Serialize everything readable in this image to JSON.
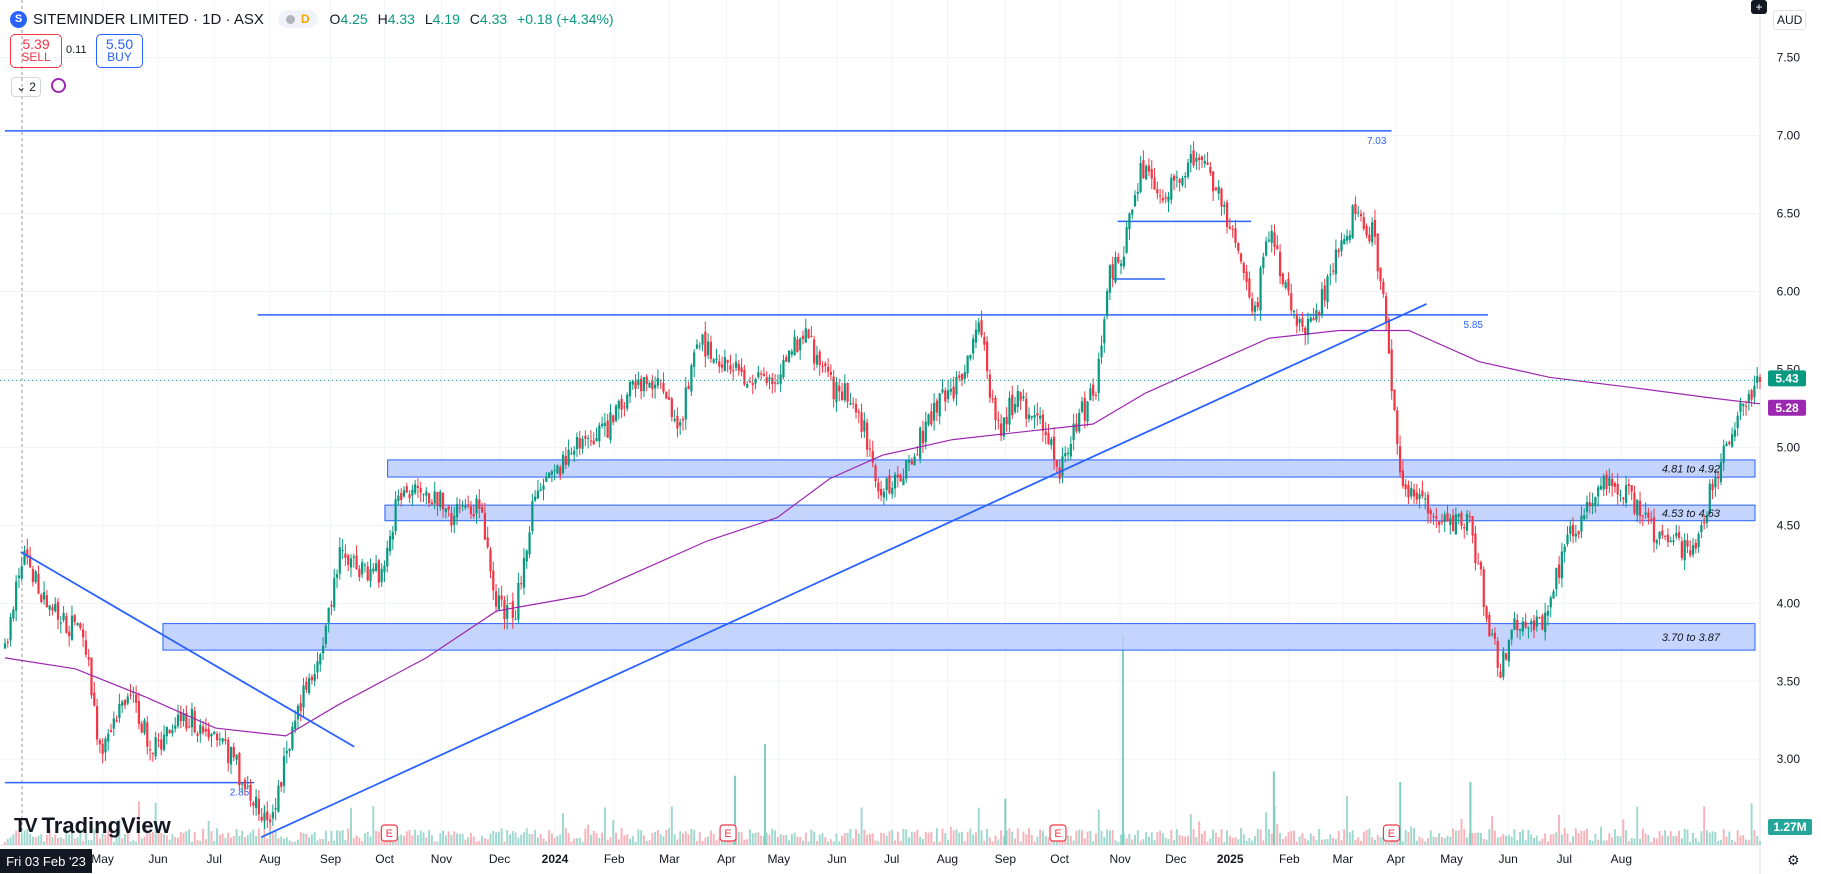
{
  "header": {
    "logo_letter": "S",
    "title": "SITEMINDER LIMITED · 1D · ASX",
    "session_badge": "D",
    "ohlc": [
      {
        "k": "O",
        "v": "4.25"
      },
      {
        "k": "H",
        "v": "4.33"
      },
      {
        "k": "L",
        "v": "4.19"
      },
      {
        "k": "C",
        "v": "4.33"
      },
      {
        "k": "",
        "v": "+0.18 (+4.34%)"
      }
    ]
  },
  "trade": {
    "sell_price": "5.39",
    "sell_label": "SELL",
    "spread": "0.11",
    "buy_price": "5.50",
    "buy_label": "BUY"
  },
  "indicators": {
    "count": "2"
  },
  "currency": "AUD",
  "branding": {
    "name": "TradingView"
  },
  "crosshair_date": "Fri 03 Feb '23",
  "colors": {
    "up": "#089981",
    "down": "#f23645",
    "drawing": "#2962ff",
    "ma": "#9c27b0",
    "zone_fill": "#bbcdfb"
  },
  "chart_data": {
    "type": "candlestick",
    "y_axis": {
      "range": [
        2.45,
        7.78
      ],
      "ticks": [
        "3.00",
        "3.50",
        "4.00",
        "4.50",
        "5.00",
        "5.50",
        "6.00",
        "6.50",
        "7.00",
        "7.50"
      ]
    },
    "x_axis": {
      "ticks": [
        {
          "label": "May",
          "t": 0.0556
        },
        {
          "label": "Jun",
          "t": 0.0872
        },
        {
          "label": "Jul",
          "t": 0.1192
        },
        {
          "label": "Aug",
          "t": 0.151
        },
        {
          "label": "Sep",
          "t": 0.1855
        },
        {
          "label": "Oct",
          "t": 0.2163
        },
        {
          "label": "Nov",
          "t": 0.2487
        },
        {
          "label": "Dec",
          "t": 0.2818
        },
        {
          "label": "2024",
          "t": 0.3134
        },
        {
          "label": "Feb",
          "t": 0.3471
        },
        {
          "label": "Mar",
          "t": 0.3786
        },
        {
          "label": "Apr",
          "t": 0.4111
        },
        {
          "label": "May",
          "t": 0.4409
        },
        {
          "label": "Jun",
          "t": 0.474
        },
        {
          "label": "Jul",
          "t": 0.5052
        },
        {
          "label": "Aug",
          "t": 0.537
        },
        {
          "label": "Sep",
          "t": 0.57
        },
        {
          "label": "Oct",
          "t": 0.6009
        },
        {
          "label": "Nov",
          "t": 0.6354
        },
        {
          "label": "Dec",
          "t": 0.6671
        },
        {
          "label": "2025",
          "t": 0.6981
        },
        {
          "label": "Feb",
          "t": 0.7318
        },
        {
          "label": "Mar",
          "t": 0.7623
        },
        {
          "label": "Apr",
          "t": 0.7926
        },
        {
          "label": "May",
          "t": 0.8243
        },
        {
          "label": "Jun",
          "t": 0.8565
        },
        {
          "label": "Jul",
          "t": 0.8885
        },
        {
          "label": "Aug",
          "t": 0.921
        }
      ]
    },
    "price_keypoints": [
      [
        0.0,
        3.7
      ],
      [
        0.01,
        4.3
      ],
      [
        0.03,
        3.9
      ],
      [
        0.045,
        3.8
      ],
      [
        0.055,
        3.0
      ],
      [
        0.07,
        3.45
      ],
      [
        0.085,
        3.05
      ],
      [
        0.1,
        3.3
      ],
      [
        0.125,
        3.1
      ],
      [
        0.15,
        2.55
      ],
      [
        0.16,
        3.0
      ],
      [
        0.17,
        3.45
      ],
      [
        0.18,
        3.6
      ],
      [
        0.19,
        4.3
      ],
      [
        0.2,
        4.25
      ],
      [
        0.215,
        4.2
      ],
      [
        0.223,
        4.65
      ],
      [
        0.235,
        4.8
      ],
      [
        0.255,
        4.55
      ],
      [
        0.27,
        4.65
      ],
      [
        0.28,
        4.0
      ],
      [
        0.29,
        3.9
      ],
      [
        0.3,
        4.6
      ],
      [
        0.315,
        4.85
      ],
      [
        0.33,
        5.05
      ],
      [
        0.345,
        5.15
      ],
      [
        0.36,
        5.45
      ],
      [
        0.375,
        5.35
      ],
      [
        0.385,
        5.15
      ],
      [
        0.395,
        5.7
      ],
      [
        0.41,
        5.55
      ],
      [
        0.425,
        5.4
      ],
      [
        0.44,
        5.45
      ],
      [
        0.455,
        5.75
      ],
      [
        0.47,
        5.4
      ],
      [
        0.485,
        5.3
      ],
      [
        0.5,
        4.7
      ],
      [
        0.515,
        4.9
      ],
      [
        0.53,
        5.25
      ],
      [
        0.545,
        5.45
      ],
      [
        0.555,
        5.8
      ],
      [
        0.565,
        5.1
      ],
      [
        0.575,
        5.3
      ],
      [
        0.59,
        5.2
      ],
      [
        0.6,
        4.85
      ],
      [
        0.613,
        5.2
      ],
      [
        0.622,
        5.4
      ],
      [
        0.628,
        6.05
      ],
      [
        0.638,
        6.3
      ],
      [
        0.648,
        6.8
      ],
      [
        0.66,
        6.6
      ],
      [
        0.675,
        6.85
      ],
      [
        0.69,
        6.7
      ],
      [
        0.7,
        6.35
      ],
      [
        0.712,
        5.85
      ],
      [
        0.72,
        6.4
      ],
      [
        0.732,
        5.9
      ],
      [
        0.745,
        5.75
      ],
      [
        0.758,
        6.2
      ],
      [
        0.77,
        6.55
      ],
      [
        0.78,
        6.35
      ],
      [
        0.788,
        5.7
      ],
      [
        0.795,
        4.8
      ],
      [
        0.805,
        4.65
      ],
      [
        0.82,
        4.55
      ],
      [
        0.835,
        4.5
      ],
      [
        0.845,
        3.9
      ],
      [
        0.852,
        3.55
      ],
      [
        0.86,
        3.9
      ],
      [
        0.875,
        3.85
      ],
      [
        0.89,
        4.4
      ],
      [
        0.905,
        4.65
      ],
      [
        0.915,
        4.8
      ],
      [
        0.925,
        4.7
      ],
      [
        0.935,
        4.5
      ],
      [
        0.95,
        4.4
      ],
      [
        0.96,
        4.3
      ],
      [
        0.97,
        4.65
      ],
      [
        0.982,
        5.05
      ],
      [
        0.992,
        5.3
      ],
      [
        1.0,
        5.43
      ]
    ],
    "moving_average": [
      [
        0.0,
        3.65
      ],
      [
        0.04,
        3.58
      ],
      [
        0.08,
        3.4
      ],
      [
        0.12,
        3.2
      ],
      [
        0.16,
        3.15
      ],
      [
        0.19,
        3.35
      ],
      [
        0.24,
        3.65
      ],
      [
        0.28,
        3.95
      ],
      [
        0.33,
        4.05
      ],
      [
        0.36,
        4.2
      ],
      [
        0.4,
        4.4
      ],
      [
        0.44,
        4.55
      ],
      [
        0.47,
        4.8
      ],
      [
        0.5,
        4.95
      ],
      [
        0.54,
        5.05
      ],
      [
        0.58,
        5.1
      ],
      [
        0.62,
        5.15
      ],
      [
        0.65,
        5.35
      ],
      [
        0.69,
        5.55
      ],
      [
        0.72,
        5.7
      ],
      [
        0.76,
        5.75
      ],
      [
        0.8,
        5.75
      ],
      [
        0.84,
        5.55
      ],
      [
        0.88,
        5.45
      ],
      [
        0.93,
        5.38
      ],
      [
        0.97,
        5.32
      ],
      [
        1.0,
        5.28
      ]
    ],
    "horizontal_lines": [
      {
        "price": 7.03,
        "label": "7.03",
        "t_start": 0.0,
        "t_end": 0.79
      },
      {
        "price": 5.85,
        "label": "5.85",
        "t_start": 0.144,
        "t_end": 0.845
      },
      {
        "price": 2.85,
        "label": "2.85",
        "t_start": 0.0,
        "t_end": 0.142
      },
      {
        "price": 6.45,
        "label": "",
        "t_start": 0.634,
        "t_end": 0.71
      },
      {
        "price": 6.08,
        "label": "",
        "t_start": 0.631,
        "t_end": 0.661
      }
    ],
    "trend_lines": [
      {
        "from": [
          0.009,
          4.33
        ],
        "to": [
          0.199,
          3.08
        ]
      },
      {
        "from": [
          0.146,
          2.5
        ],
        "to": [
          0.81,
          5.92
        ]
      }
    ],
    "zones": [
      {
        "low": 4.81,
        "high": 4.92,
        "label": "4.81 to 4.92",
        "t_start": 0.218
      },
      {
        "low": 4.53,
        "high": 4.63,
        "label": "4.53 to 4.63",
        "t_start": 0.2165
      },
      {
        "low": 3.7,
        "high": 3.87,
        "label": "3.70 to 3.87",
        "t_start": 0.09
      }
    ],
    "price_labels": [
      {
        "value": "5.43",
        "price": 5.43,
        "color": "#089981"
      },
      {
        "value": "5.28",
        "price": 5.28,
        "color": "#9c27b0"
      }
    ],
    "volume_label": "1.27M",
    "earnings_markers": [
      0.219,
      0.412,
      0.6,
      0.79
    ],
    "earnings_letter": "E",
    "volume_spikes": [
      {
        "t": 0.637,
        "v": 1.0
      },
      {
        "t": 0.433,
        "v": 0.48
      },
      {
        "t": 0.416,
        "v": 0.33
      },
      {
        "t": 0.795,
        "v": 0.3
      },
      {
        "t": 0.723,
        "v": 0.35
      },
      {
        "t": 0.835,
        "v": 0.3
      },
      {
        "t": 0.57,
        "v": 0.22
      }
    ]
  }
}
